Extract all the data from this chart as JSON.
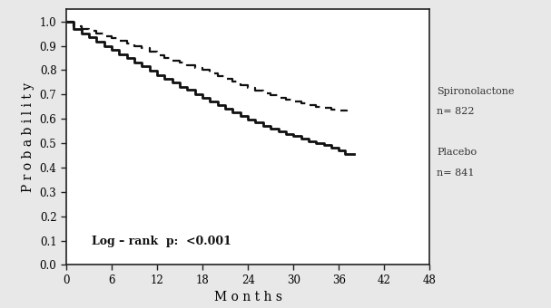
{
  "xlabel": "Months",
  "ylabel": "Probability",
  "xlim": [
    0,
    48
  ],
  "ylim": [
    0.0,
    1.05
  ],
  "xticks": [
    0,
    6,
    12,
    18,
    24,
    30,
    36,
    42,
    48
  ],
  "yticks": [
    0.0,
    0.1,
    0.2,
    0.3,
    0.4,
    0.5,
    0.6,
    0.7,
    0.8,
    0.9,
    1.0
  ],
  "spiro_x": [
    0,
    1,
    2,
    3,
    4,
    5,
    6,
    7,
    8,
    9,
    10,
    11,
    12,
    13,
    14,
    15,
    16,
    17,
    18,
    19,
    20,
    21,
    22,
    23,
    24,
    25,
    26,
    27,
    28,
    29,
    30,
    31,
    32,
    33,
    34,
    35,
    36,
    37
  ],
  "spiro_y": [
    1.0,
    0.98,
    0.97,
    0.96,
    0.95,
    0.94,
    0.93,
    0.92,
    0.91,
    0.9,
    0.89,
    0.875,
    0.862,
    0.85,
    0.84,
    0.83,
    0.82,
    0.81,
    0.8,
    0.788,
    0.776,
    0.765,
    0.752,
    0.74,
    0.728,
    0.716,
    0.706,
    0.696,
    0.687,
    0.678,
    0.67,
    0.663,
    0.657,
    0.65,
    0.645,
    0.638,
    0.633,
    0.63
  ],
  "placebo_x": [
    0,
    1,
    2,
    3,
    4,
    5,
    6,
    7,
    8,
    9,
    10,
    11,
    12,
    13,
    14,
    15,
    16,
    17,
    18,
    19,
    20,
    21,
    22,
    23,
    24,
    25,
    26,
    27,
    28,
    29,
    30,
    31,
    32,
    33,
    34,
    35,
    36,
    36.8,
    38
  ],
  "placebo_y": [
    1.0,
    0.97,
    0.952,
    0.935,
    0.918,
    0.9,
    0.882,
    0.865,
    0.848,
    0.832,
    0.816,
    0.798,
    0.78,
    0.763,
    0.748,
    0.732,
    0.718,
    0.702,
    0.687,
    0.671,
    0.656,
    0.641,
    0.626,
    0.612,
    0.598,
    0.585,
    0.572,
    0.56,
    0.549,
    0.538,
    0.528,
    0.518,
    0.509,
    0.5,
    0.491,
    0.482,
    0.472,
    0.455,
    0.455
  ],
  "annotation": "Log – rank  p:  <0.001",
  "spiro_label1": "Spironolactone",
  "spiro_label2": "n= 822",
  "placebo_label1": "Placebo",
  "placebo_label2": "n= 841",
  "line_color": "#111111",
  "fig_bg": "#e8e8e8",
  "plot_bg": "#ffffff"
}
